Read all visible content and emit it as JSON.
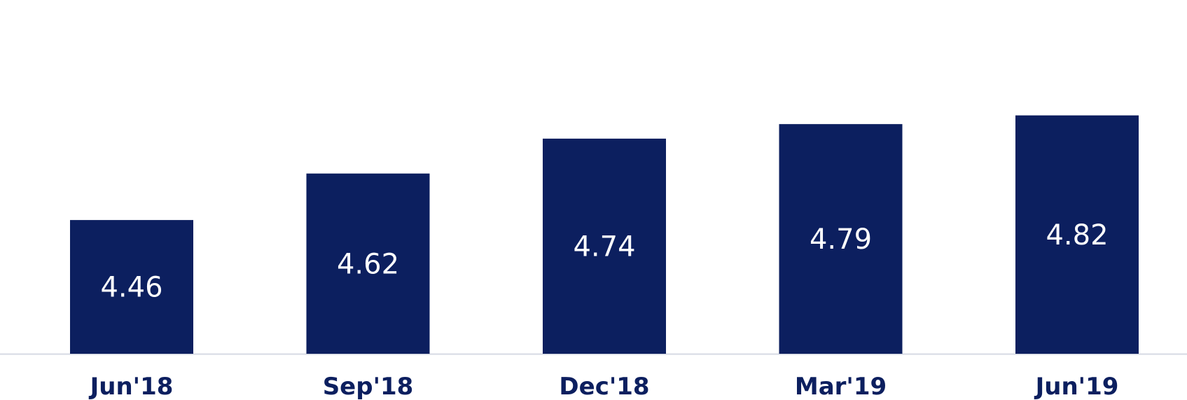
{
  "chart_data": {
    "type": "bar",
    "categories": [
      "Jun'18",
      "Sep'18",
      "Dec'18",
      "Mar'19",
      "Jun'19"
    ],
    "values": [
      4.46,
      4.62,
      4.74,
      4.79,
      4.82
    ],
    "data_labels": [
      "4.46",
      "4.62",
      "4.74",
      "4.79",
      "4.82"
    ],
    "title": "",
    "xlabel": "",
    "ylabel": "",
    "grid": false,
    "legend": "none",
    "colors": {
      "bar": "#0c1f5f",
      "label": "#ffffff",
      "axis": "#d6d9e3",
      "tick": "#0c1f5f"
    }
  }
}
